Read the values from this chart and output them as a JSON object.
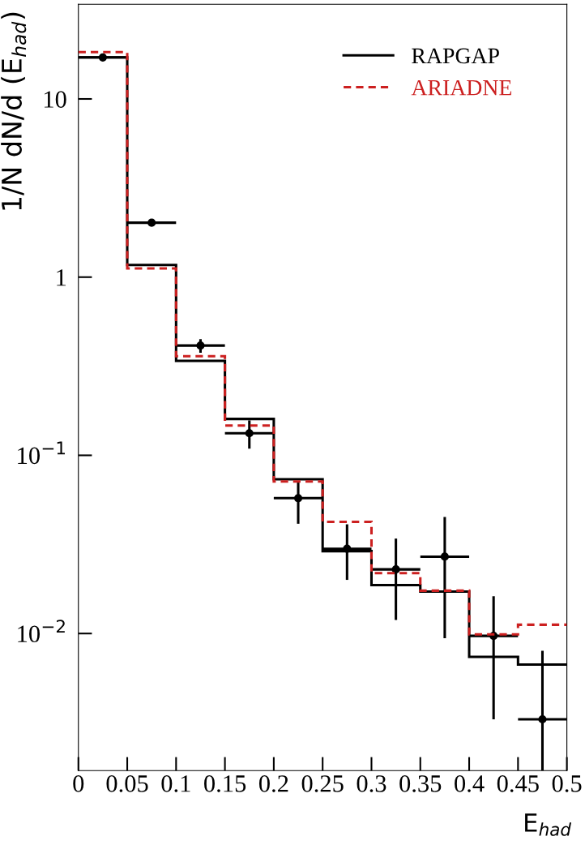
{
  "chart_data": {
    "type": "histogram",
    "xlabel": "E$_{had}$",
    "ylabel": "1/N dN/d (E$_{had}$)",
    "bins": [
      0,
      0.05,
      0.1,
      0.15,
      0.2,
      0.25,
      0.3,
      0.35,
      0.4,
      0.45,
      0.5
    ],
    "series": [
      {
        "name": "RAPGAP",
        "color": "#000000",
        "line_style": "solid",
        "values": [
          17.1,
          1.17,
          0.339,
          0.16,
          0.0734,
          0.029,
          0.0187,
          0.0172,
          0.0074,
          0.0067
        ]
      },
      {
        "name": "ARIADNE",
        "color": "#cc2020",
        "line_style": "dashed",
        "values": [
          18.3,
          1.12,
          0.36,
          0.147,
          0.0713,
          0.0423,
          0.0218,
          0.0174,
          0.0099,
          0.0112
        ]
      },
      {
        "type": "scatter",
        "color": "#000000",
        "marker": "circle",
        "x": [
          0.025,
          0.075,
          0.125,
          0.175,
          0.225,
          0.275,
          0.325,
          0.375,
          0.425,
          0.475
        ],
        "values": [
          17.1,
          2.02,
          0.413,
          0.133,
          0.0575,
          0.0299,
          0.0229,
          0.027,
          0.0097,
          0.0033
        ],
        "errors": [
          null,
          null,
          [
            0.376,
            0.449
          ],
          [
            0.109,
            0.157
          ],
          [
            0.0413,
            0.0714
          ],
          [
            0.02,
            0.041
          ],
          [
            0.0119,
            0.0341
          ],
          [
            0.0094,
            0.0451
          ],
          [
            0.0033,
            0.0162
          ],
          [
            0.0017,
            0.008
          ]
        ],
        "xerrors": [
          0.025,
          0.025,
          0.025,
          0.025,
          0.025,
          0.025,
          0.025,
          0.025,
          0.025,
          0.025
        ]
      }
    ],
    "log": "y",
    "xlim": [
      0,
      0.5
    ],
    "ylim": [
      0.0017,
      34
    ],
    "xticks": [
      0,
      0.05,
      0.1,
      0.15,
      0.2,
      0.25,
      0.3,
      0.35,
      0.4,
      0.45,
      0.5
    ],
    "yticks": [
      {
        "value": 0.01,
        "label": "10$^{−2}$"
      },
      {
        "value": 0.1,
        "label": "10$^{−1}$"
      },
      1,
      10
    ],
    "grid": false,
    "legend": "top right"
  }
}
